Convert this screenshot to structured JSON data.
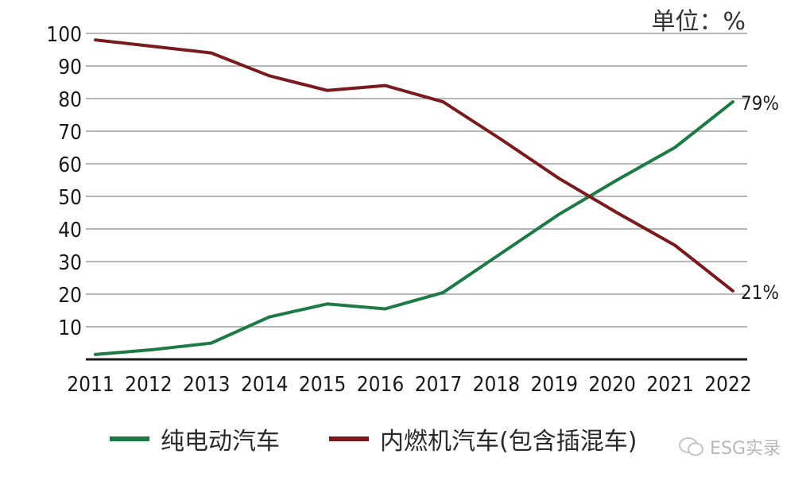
{
  "chart_data": {
    "type": "line",
    "unit_label": "单位：%",
    "x": [
      "2011",
      "2012",
      "2013",
      "2014",
      "2015",
      "2016",
      "2017",
      "2018",
      "2019",
      "2020",
      "2021",
      "2022"
    ],
    "yticks": [
      "10",
      "20",
      "30",
      "40",
      "50",
      "60",
      "70",
      "80",
      "90",
      "100"
    ],
    "ylim": [
      0,
      100
    ],
    "grid": true,
    "legend_position": "bottom",
    "series": [
      {
        "name": "纯电动汽车",
        "color": "#1e7a45",
        "values": [
          1.5,
          3,
          5,
          13,
          17,
          15.5,
          20.5,
          32.5,
          44.5,
          55,
          65,
          79
        ],
        "end_label": "79%"
      },
      {
        "name": "内燃机汽车(包含插混车)",
        "color": "#7a1a1c",
        "values": [
          98,
          96,
          94,
          87,
          82.5,
          84,
          79,
          67.5,
          55.5,
          45,
          35,
          21
        ],
        "end_label": "21%"
      }
    ]
  },
  "watermark": {
    "text": "ESG实录",
    "icon": "wechat-icon"
  }
}
